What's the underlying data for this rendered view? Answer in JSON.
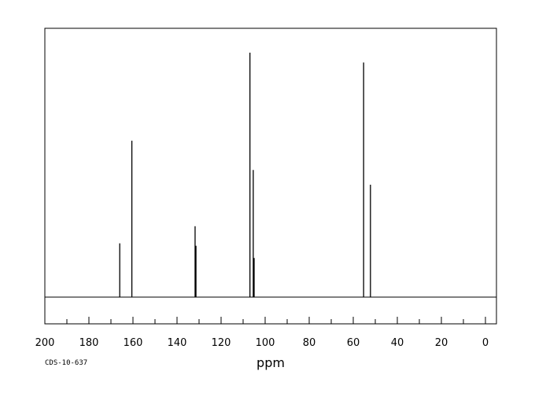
{
  "chart_data": {
    "type": "line",
    "title": "",
    "xlabel": "ppm",
    "ylabel": "",
    "xlim": [
      200,
      -5
    ],
    "x_reversed": true,
    "ylim": [
      0,
      1.0
    ],
    "x_major_ticks": [
      200,
      180,
      160,
      140,
      120,
      100,
      80,
      60,
      40,
      20,
      0
    ],
    "x_minor_step": 10,
    "tick_labels": [
      "200",
      "180",
      "160",
      "140",
      "120",
      "100",
      "80",
      "60",
      "40",
      "20",
      "0"
    ],
    "grid": false,
    "legend": "none",
    "footnote": "CDS-10-637",
    "peaks": [
      {
        "ppm": 166.0,
        "intensity": 0.22
      },
      {
        "ppm": 160.5,
        "intensity": 0.64
      },
      {
        "ppm": 131.8,
        "intensity": 0.29
      },
      {
        "ppm": 131.4,
        "intensity": 0.21
      },
      {
        "ppm": 106.9,
        "intensity": 1.0
      },
      {
        "ppm": 105.4,
        "intensity": 0.52
      },
      {
        "ppm": 105.0,
        "intensity": 0.16
      },
      {
        "ppm": 55.3,
        "intensity": 0.96
      },
      {
        "ppm": 52.2,
        "intensity": 0.46
      }
    ],
    "colors": {
      "trace": "#000000",
      "frame": "#000000"
    }
  }
}
